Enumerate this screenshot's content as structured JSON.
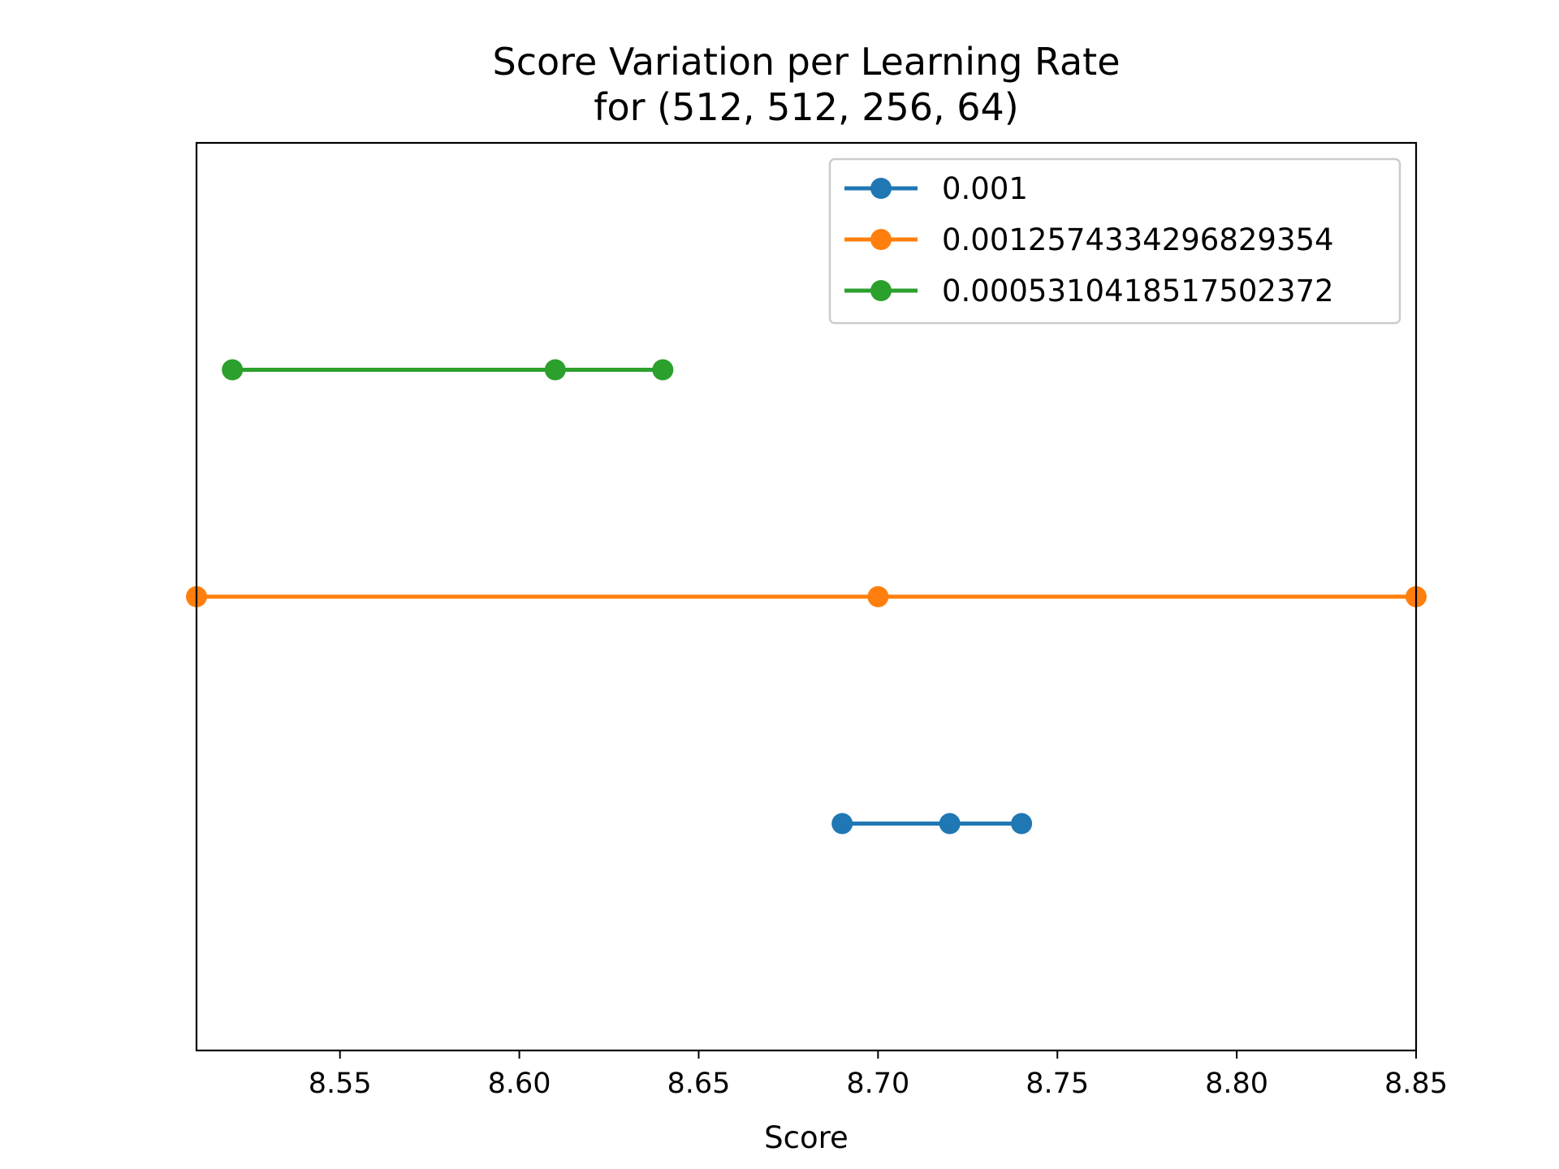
{
  "chart_data": {
    "type": "line",
    "title": "Score Variation per Learning Rate",
    "subtitle": "for (512, 512, 256, 64)",
    "xlabel": "Score",
    "ylabel": "",
    "xlim": [
      8.51,
      8.85
    ],
    "ylim": [
      0,
      4
    ],
    "x_ticks": [
      8.55,
      8.6,
      8.65,
      8.7,
      8.75,
      8.8,
      8.85
    ],
    "x_tick_labels": [
      "8.55",
      "8.60",
      "8.65",
      "8.70",
      "8.75",
      "8.80",
      "8.85"
    ],
    "y_ticks_shown": false,
    "grid": false,
    "legend_position": "top-right",
    "series": [
      {
        "name": "0.001",
        "color": "#1f77b4",
        "y": 1,
        "x": [
          8.69,
          8.72,
          8.74
        ]
      },
      {
        "name": "0.0012574334296829354",
        "color": "#ff7f0e",
        "y": 2,
        "x": [
          8.51,
          8.7,
          8.85
        ]
      },
      {
        "name": "0.0005310418517502372",
        "color": "#2ca02c",
        "y": 3,
        "x": [
          8.52,
          8.61,
          8.64
        ]
      }
    ]
  }
}
